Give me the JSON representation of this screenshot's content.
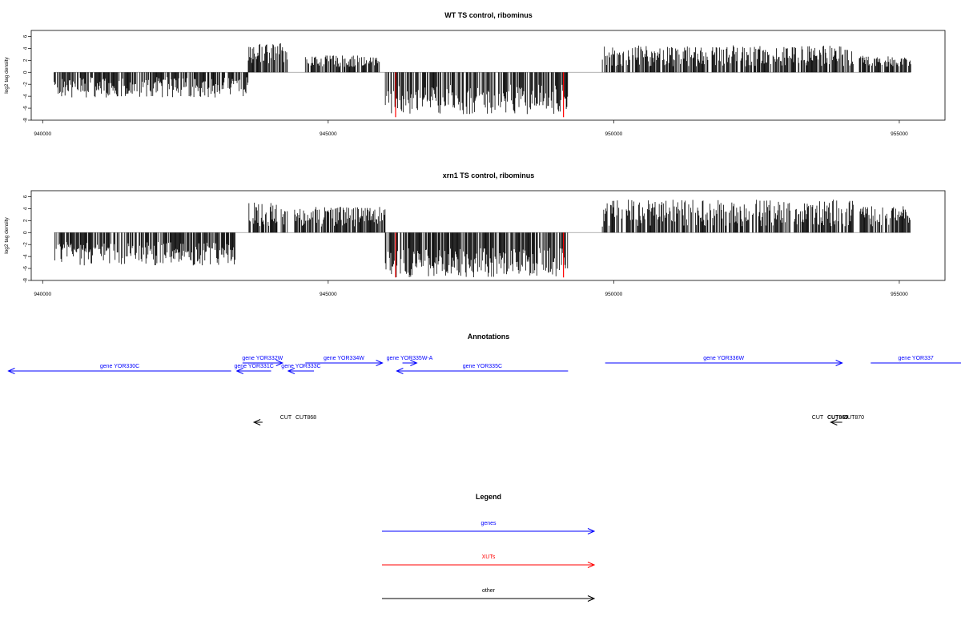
{
  "colors": {
    "genes": "#0000ff",
    "xuts": "#ff0000",
    "other": "#000000",
    "bars": "#000000",
    "highlight": "#ff0000",
    "baseline": "#999999"
  },
  "chart_data": [
    {
      "type": "bar",
      "title": "WT TS control, ribominus",
      "ylabel": "log2 tag density",
      "xlim": [
        939800,
        955800
      ],
      "ylim": [
        -8,
        7
      ],
      "x_ticks": [
        940000,
        945000,
        950000,
        955000
      ],
      "y_ticks": [
        -8,
        -6,
        -4,
        -2,
        0,
        2,
        4,
        6
      ],
      "grid": false,
      "segments": [
        {
          "start": 940200,
          "end": 943600,
          "sign": -1,
          "min": 0.8,
          "max": 4.2
        },
        {
          "start": 943600,
          "end": 944300,
          "sign": 1,
          "min": 1.5,
          "max": 5.0
        },
        {
          "start": 944600,
          "end": 945900,
          "sign": 1,
          "min": 0.8,
          "max": 2.8
        },
        {
          "start": 946000,
          "end": 949200,
          "sign": -1,
          "min": 2.0,
          "max": 7.0
        },
        {
          "start": 949800,
          "end": 954200,
          "sign": 1,
          "min": 1.0,
          "max": 4.5
        },
        {
          "start": 954300,
          "end": 955200,
          "sign": 1,
          "min": 0.8,
          "max": 2.8
        }
      ],
      "highlight_bars": [
        {
          "x": 946180,
          "value": -7.5
        },
        {
          "x": 949120,
          "value": -7.5
        }
      ]
    },
    {
      "type": "bar",
      "title": "xrn1 TS control, ribominus",
      "ylabel": "log2 tag density",
      "xlim": [
        939800,
        955800
      ],
      "ylim": [
        -8,
        7
      ],
      "x_ticks": [
        940000,
        945000,
        950000,
        955000
      ],
      "y_ticks": [
        -8,
        -6,
        -4,
        -2,
        0,
        2,
        4,
        6
      ],
      "grid": false,
      "segments": [
        {
          "start": 940200,
          "end": 943400,
          "sign": -1,
          "min": 1.5,
          "max": 5.5
        },
        {
          "start": 943600,
          "end": 944300,
          "sign": 1,
          "min": 1.0,
          "max": 5.0
        },
        {
          "start": 944400,
          "end": 946000,
          "sign": 1,
          "min": 1.0,
          "max": 4.3
        },
        {
          "start": 946000,
          "end": 949200,
          "sign": -1,
          "min": 2.5,
          "max": 7.5
        },
        {
          "start": 949800,
          "end": 954200,
          "sign": 1,
          "min": 1.0,
          "max": 5.5
        },
        {
          "start": 954300,
          "end": 955200,
          "sign": 1,
          "min": 1.0,
          "max": 4.5
        }
      ],
      "highlight_bars": [
        {
          "x": 946180,
          "value": -7.5
        },
        {
          "x": 949120,
          "value": -7.5
        }
      ]
    }
  ],
  "annotations": {
    "title": "Annotations",
    "genes": [
      {
        "label": "gene YOR330C",
        "start": 943300,
        "end": 939400,
        "row": 1
      },
      {
        "label": "gene YOR331C",
        "start": 944000,
        "end": 943400,
        "row": 1
      },
      {
        "label": "gene YOR332W",
        "start": 943500,
        "end": 944200,
        "row": 0
      },
      {
        "label": "gene YOR333C",
        "start": 944750,
        "end": 944300,
        "row": 1
      },
      {
        "label": "gene YOR334W",
        "start": 944600,
        "end": 945950,
        "row": 0
      },
      {
        "label": "gene YOR335W-A",
        "start": 946300,
        "end": 946550,
        "row": 0
      },
      {
        "label": "gene YOR335C",
        "start": 949200,
        "end": 946200,
        "row": 1
      },
      {
        "label": "gene YOR336W",
        "start": 949850,
        "end": 954000,
        "row": 0
      },
      {
        "label": "gene YOR337",
        "start": 954500,
        "end": 956400,
        "row": 0
      }
    ],
    "other": [
      {
        "label": "CUT",
        "start": 943850,
        "end": 943700,
        "row": 2
      },
      {
        "label": "CUT868",
        "start": 943850,
        "end": 943700,
        "row": 2
      },
      {
        "label": "CUT",
        "start": 954000,
        "end": 953800,
        "row": 2
      },
      {
        "label": "CUT869",
        "start": 954000,
        "end": 953800,
        "row": 2
      },
      {
        "label": "CUT870",
        "start": 954000,
        "end": 953800,
        "row": 2
      }
    ]
  },
  "legend": {
    "title": "Legend",
    "items": [
      {
        "label": "genes",
        "color_key": "genes"
      },
      {
        "label": "XUTs",
        "color_key": "xuts"
      },
      {
        "label": "other",
        "color_key": "other"
      }
    ]
  }
}
